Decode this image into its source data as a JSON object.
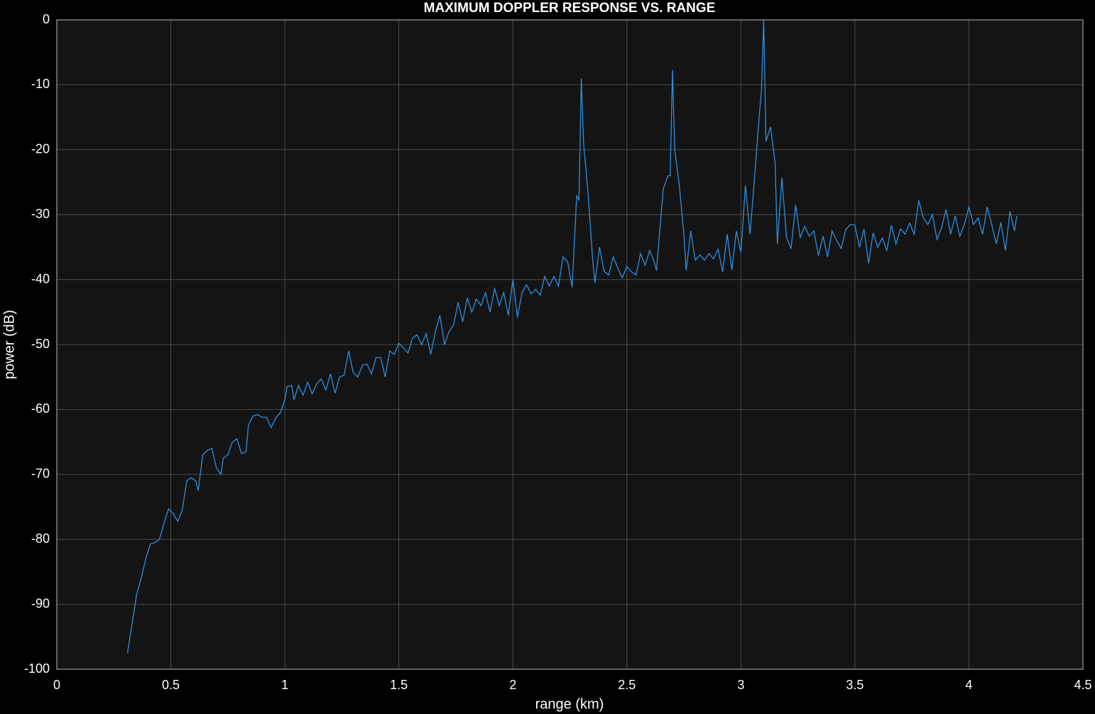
{
  "chart_data": {
    "type": "line",
    "title": "MAXIMUM DOPPLER RESPONSE VS. RANGE",
    "x_label": "range (km)",
    "y_label": "power (dB)",
    "x": [
      0.31,
      0.33,
      0.35,
      0.37,
      0.39,
      0.41,
      0.43,
      0.45,
      0.47,
      0.49,
      0.51,
      0.53,
      0.55,
      0.57,
      0.59,
      0.61,
      0.62,
      0.64,
      0.66,
      0.68,
      0.7,
      0.72,
      0.73,
      0.75,
      0.77,
      0.79,
      0.81,
      0.83,
      0.84,
      0.86,
      0.88,
      0.9,
      0.92,
      0.94,
      0.96,
      0.98,
      1.0,
      1.01,
      1.03,
      1.04,
      1.06,
      1.08,
      1.1,
      1.12,
      1.14,
      1.16,
      1.18,
      1.2,
      1.22,
      1.24,
      1.26,
      1.28,
      1.3,
      1.32,
      1.34,
      1.36,
      1.38,
      1.4,
      1.42,
      1.44,
      1.46,
      1.48,
      1.5,
      1.52,
      1.54,
      1.56,
      1.58,
      1.6,
      1.62,
      1.64,
      1.66,
      1.68,
      1.7,
      1.72,
      1.74,
      1.76,
      1.78,
      1.8,
      1.82,
      1.84,
      1.86,
      1.88,
      1.9,
      1.92,
      1.94,
      1.96,
      1.98,
      2.0,
      2.02,
      2.04,
      2.06,
      2.08,
      2.1,
      2.12,
      2.14,
      2.16,
      2.18,
      2.2,
      2.22,
      2.24,
      2.26,
      2.28,
      2.29,
      2.3,
      2.31,
      2.33,
      2.35,
      2.36,
      2.38,
      2.4,
      2.42,
      2.44,
      2.46,
      2.48,
      2.5,
      2.52,
      2.54,
      2.56,
      2.58,
      2.6,
      2.62,
      2.63,
      2.65,
      2.66,
      2.68,
      2.69,
      2.7,
      2.71,
      2.73,
      2.75,
      2.76,
      2.78,
      2.8,
      2.82,
      2.84,
      2.86,
      2.88,
      2.9,
      2.92,
      2.94,
      2.96,
      2.98,
      3.0,
      3.02,
      3.04,
      3.06,
      3.08,
      3.09,
      3.1,
      3.11,
      3.13,
      3.15,
      3.16,
      3.18,
      3.2,
      3.22,
      3.24,
      3.26,
      3.28,
      3.3,
      3.32,
      3.34,
      3.36,
      3.38,
      3.4,
      3.42,
      3.44,
      3.46,
      3.48,
      3.5,
      3.52,
      3.54,
      3.56,
      3.58,
      3.6,
      3.62,
      3.64,
      3.66,
      3.68,
      3.7,
      3.72,
      3.74,
      3.76,
      3.78,
      3.8,
      3.82,
      3.84,
      3.86,
      3.88,
      3.9,
      3.92,
      3.94,
      3.96,
      3.98,
      4.0,
      4.02,
      4.04,
      4.06,
      4.08,
      4.1,
      4.12,
      4.14,
      4.16,
      4.18,
      4.2,
      4.21
    ],
    "series": [
      {
        "name": "power",
        "color": "#2e8fe0",
        "values": [
          -97.5,
          -93,
          -88.5,
          -86,
          -83,
          -80.7,
          -80.5,
          -80,
          -77.5,
          -75.3,
          -76,
          -77.2,
          -75.5,
          -71,
          -70.5,
          -71,
          -72.5,
          -67,
          -66.3,
          -66,
          -69,
          -70,
          -67.5,
          -67,
          -65,
          -64.5,
          -66.8,
          -66.5,
          -62.5,
          -61,
          -60.8,
          -61.2,
          -61.2,
          -62.8,
          -61.3,
          -60.5,
          -58.5,
          -56.5,
          -56.3,
          -58.5,
          -56.3,
          -57.8,
          -55.8,
          -57.6,
          -56,
          -55.3,
          -57,
          -54.5,
          -57.5,
          -55,
          -54.7,
          -51,
          -54.3,
          -55,
          -53.2,
          -53,
          -54.5,
          -52,
          -52,
          -55,
          -51,
          -51.5,
          -49.8,
          -50.5,
          -51.3,
          -49,
          -48.5,
          -50,
          -48.3,
          -51.5,
          -48,
          -45.5,
          -50,
          -48,
          -47,
          -43.5,
          -46.5,
          -42.8,
          -45,
          -43,
          -44,
          -42,
          -45,
          -41.3,
          -44,
          -42,
          -45.5,
          -40,
          -45.8,
          -42,
          -40.8,
          -42.2,
          -41.5,
          -42.4,
          -39.5,
          -41,
          -39.5,
          -41,
          -36.5,
          -37.2,
          -41.2,
          -27,
          -27.8,
          -9,
          -19,
          -26.7,
          -37,
          -40.5,
          -35,
          -38.7,
          -39.3,
          -36.5,
          -38.2,
          -39.7,
          -38,
          -38.8,
          -39.3,
          -36,
          -37.8,
          -35.5,
          -37.3,
          -38.6,
          -30,
          -26,
          -24,
          -24,
          -7.7,
          -20,
          -25.5,
          -33,
          -38.6,
          -32.5,
          -37,
          -36.2,
          -37,
          -36,
          -36.8,
          -35.3,
          -38.8,
          -33,
          -38.5,
          -32.5,
          -35.8,
          -25.5,
          -33,
          -24.3,
          -15,
          -11,
          0,
          -18.7,
          -16.5,
          -22,
          -34.5,
          -24.3,
          -33.5,
          -35.2,
          -28.5,
          -33.5,
          -31.8,
          -33.3,
          -32.5,
          -36.3,
          -33.3,
          -36.5,
          -32.5,
          -34,
          -35.2,
          -32.3,
          -31.5,
          -31.6,
          -35,
          -32.2,
          -37.5,
          -32.8,
          -35,
          -33.6,
          -35.5,
          -31.6,
          -34.5,
          -32.2,
          -33,
          -31.3,
          -33,
          -27.8,
          -30.5,
          -31.5,
          -30,
          -33.8,
          -32,
          -29.2,
          -33,
          -30.2,
          -33.3,
          -31.5,
          -28.8,
          -31.5,
          -30.5,
          -33,
          -28.8,
          -31.5,
          -34.5,
          -31.2,
          -35.5,
          -29.5,
          -32.5,
          -30.2
        ]
      }
    ],
    "xlim": [
      0,
      4.5
    ],
    "xticks": [
      0,
      0.5,
      1,
      1.5,
      2,
      2.5,
      3,
      3.5,
      4,
      4.5
    ],
    "ylim": [
      -100,
      0
    ],
    "yticks": [
      -100,
      -90,
      -80,
      -70,
      -60,
      -50,
      -40,
      -30,
      -20,
      -10,
      0
    ],
    "grid": true
  }
}
